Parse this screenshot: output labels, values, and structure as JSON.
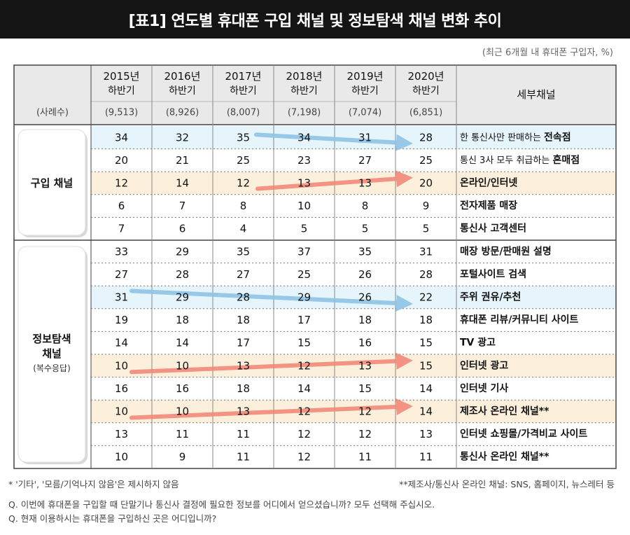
{
  "title": "[표1] 연도별 휴대폰 구입 채널 및 정보탐색 채널 변화 추이",
  "unit_note": "(최근 6개월 내 휴대폰 구입자, %)",
  "header": {
    "years": [
      {
        "year": "2015년",
        "half": "하반기"
      },
      {
        "year": "2016년",
        "half": "하반기"
      },
      {
        "year": "2017년",
        "half": "하반기"
      },
      {
        "year": "2018년",
        "half": "하반기"
      },
      {
        "year": "2019년",
        "half": "하반기"
      },
      {
        "year": "2020년",
        "half": "하반기"
      }
    ],
    "detail_label": "세부채널",
    "sample_label": "(사례수)",
    "samples": [
      "(9,513)",
      "(8,926)",
      "(8,007)",
      "(7,198)",
      "(7,074)",
      "(6,851)"
    ]
  },
  "groups": {
    "purchase": {
      "label": "구입 채널"
    },
    "info": {
      "label1": "정보탐색",
      "label2": "채널",
      "sub": "(복수응답)"
    }
  },
  "colors": {
    "title_bg": "#141414",
    "blue_highlight": "#e6f4fb",
    "orange_highlight": "#fcf0dd",
    "blue_arrow": "#8fc4e6",
    "orange_arrow": "#f2897a"
  },
  "chart_data": {
    "type": "table",
    "columns": [
      "2015년 하반기",
      "2016년 하반기",
      "2017년 하반기",
      "2018년 하반기",
      "2019년 하반기",
      "2020년 하반기"
    ],
    "rows": [
      {
        "group": "purchase",
        "values": [
          34,
          32,
          35,
          34,
          31,
          28
        ],
        "label_plain": "한 통신사만 판매하는 ",
        "label_bold": "전속점",
        "highlight": "blue",
        "arrow": "blue"
      },
      {
        "group": "purchase",
        "values": [
          20,
          21,
          25,
          23,
          27,
          25
        ],
        "label_plain": "통신 3사 모두 취급하는 ",
        "label_bold": "혼매점",
        "highlight": "none",
        "arrow": "none"
      },
      {
        "group": "purchase",
        "values": [
          12,
          14,
          12,
          13,
          13,
          20
        ],
        "label_plain": "",
        "label_bold": "온라인/인터넷",
        "highlight": "orange",
        "arrow": "orange"
      },
      {
        "group": "purchase",
        "values": [
          6,
          7,
          8,
          10,
          8,
          9
        ],
        "label_plain": "",
        "label_bold": "전자제품 매장",
        "highlight": "none",
        "arrow": "none"
      },
      {
        "group": "purchase",
        "values": [
          7,
          6,
          4,
          5,
          5,
          5
        ],
        "label_plain": "",
        "label_bold": "통신사 고객센터",
        "highlight": "none",
        "arrow": "none"
      },
      {
        "group": "info",
        "values": [
          33,
          29,
          35,
          37,
          35,
          31
        ],
        "label_plain": "",
        "label_bold": "매장 방문/판매원 설명",
        "highlight": "none",
        "arrow": "none"
      },
      {
        "group": "info",
        "values": [
          27,
          28,
          27,
          25,
          26,
          28
        ],
        "label_plain": "",
        "label_bold": "포털사이트 검색",
        "highlight": "none",
        "arrow": "none"
      },
      {
        "group": "info",
        "values": [
          31,
          29,
          28,
          29,
          26,
          22
        ],
        "label_plain": "",
        "label_bold": "주위 권유/추천",
        "highlight": "blue",
        "arrow": "blue"
      },
      {
        "group": "info",
        "values": [
          19,
          18,
          18,
          17,
          18,
          18
        ],
        "label_plain": "",
        "label_bold": "휴대폰 리뷰/커뮤니티 사이트",
        "highlight": "none",
        "arrow": "none"
      },
      {
        "group": "info",
        "values": [
          14,
          14,
          17,
          15,
          16,
          15
        ],
        "label_plain": "",
        "label_bold": "TV 광고",
        "highlight": "none",
        "arrow": "none"
      },
      {
        "group": "info",
        "values": [
          10,
          10,
          13,
          12,
          13,
          15
        ],
        "label_plain": "",
        "label_bold": "인터넷 광고",
        "highlight": "orange",
        "arrow": "orange"
      },
      {
        "group": "info",
        "values": [
          16,
          16,
          18,
          14,
          15,
          14
        ],
        "label_plain": "",
        "label_bold": "인터넷 기사",
        "highlight": "none",
        "arrow": "none"
      },
      {
        "group": "info",
        "values": [
          10,
          10,
          13,
          12,
          12,
          14
        ],
        "label_plain": "",
        "label_bold": "제조사 온라인 채널**",
        "highlight": "orange",
        "arrow": "orange"
      },
      {
        "group": "info",
        "values": [
          13,
          11,
          11,
          12,
          12,
          13
        ],
        "label_plain": "",
        "label_bold": "인터넷 쇼핑몰/가격비교 사이트",
        "highlight": "none",
        "arrow": "none"
      },
      {
        "group": "info",
        "values": [
          10,
          9,
          11,
          12,
          11,
          11
        ],
        "label_plain": "",
        "label_bold": "통신사 온라인 채널**",
        "highlight": "none",
        "arrow": "none"
      }
    ]
  },
  "footnotes": {
    "left": "* '기타', '모름/기억나지 않음'은 제시하지 않음",
    "right": "**제조사/통신사 온라인 채널: SNS, 홈페이지, 뉴스레터 등",
    "q1": "Q. 이번에 휴대폰을 구입할 때 단말기나 통신사 결정에 필요한 정보를 어디에서 얻으셨습니까? 모두 선택해 주십시오.",
    "q2": "Q. 현재 이용하시는 휴대폰을 구입하신 곳은 어디입니까?"
  }
}
